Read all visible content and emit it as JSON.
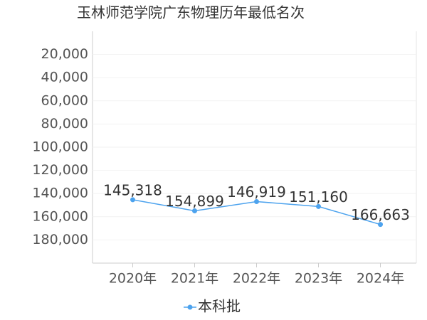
{
  "chart_data": {
    "type": "line",
    "title": "玉林师范学院广东物理历年最低名次",
    "categories": [
      "2020年",
      "2021年",
      "2022年",
      "2023年",
      "2024年"
    ],
    "series": [
      {
        "name": "本科批",
        "color": "#4da3ee",
        "values": [
          145318,
          154899,
          146919,
          151160,
          166663
        ],
        "value_labels": [
          "145,318",
          "154,899",
          "146,919",
          "151,160",
          "166,663"
        ]
      }
    ],
    "ylim": [
      0,
      200000
    ],
    "y_reversed": true,
    "yticks": [
      {
        "value": 20000,
        "label": "20,000"
      },
      {
        "value": 40000,
        "label": "40,000"
      },
      {
        "value": 60000,
        "label": "60,000"
      },
      {
        "value": 80000,
        "label": "80,000"
      },
      {
        "value": 100000,
        "label": "100,000"
      },
      {
        "value": 120000,
        "label": "120,000"
      },
      {
        "value": 140000,
        "label": "140,000"
      },
      {
        "value": 160000,
        "label": "160,000"
      },
      {
        "value": 180000,
        "label": "180,000"
      }
    ],
    "grid": true,
    "legend": "bottom"
  }
}
